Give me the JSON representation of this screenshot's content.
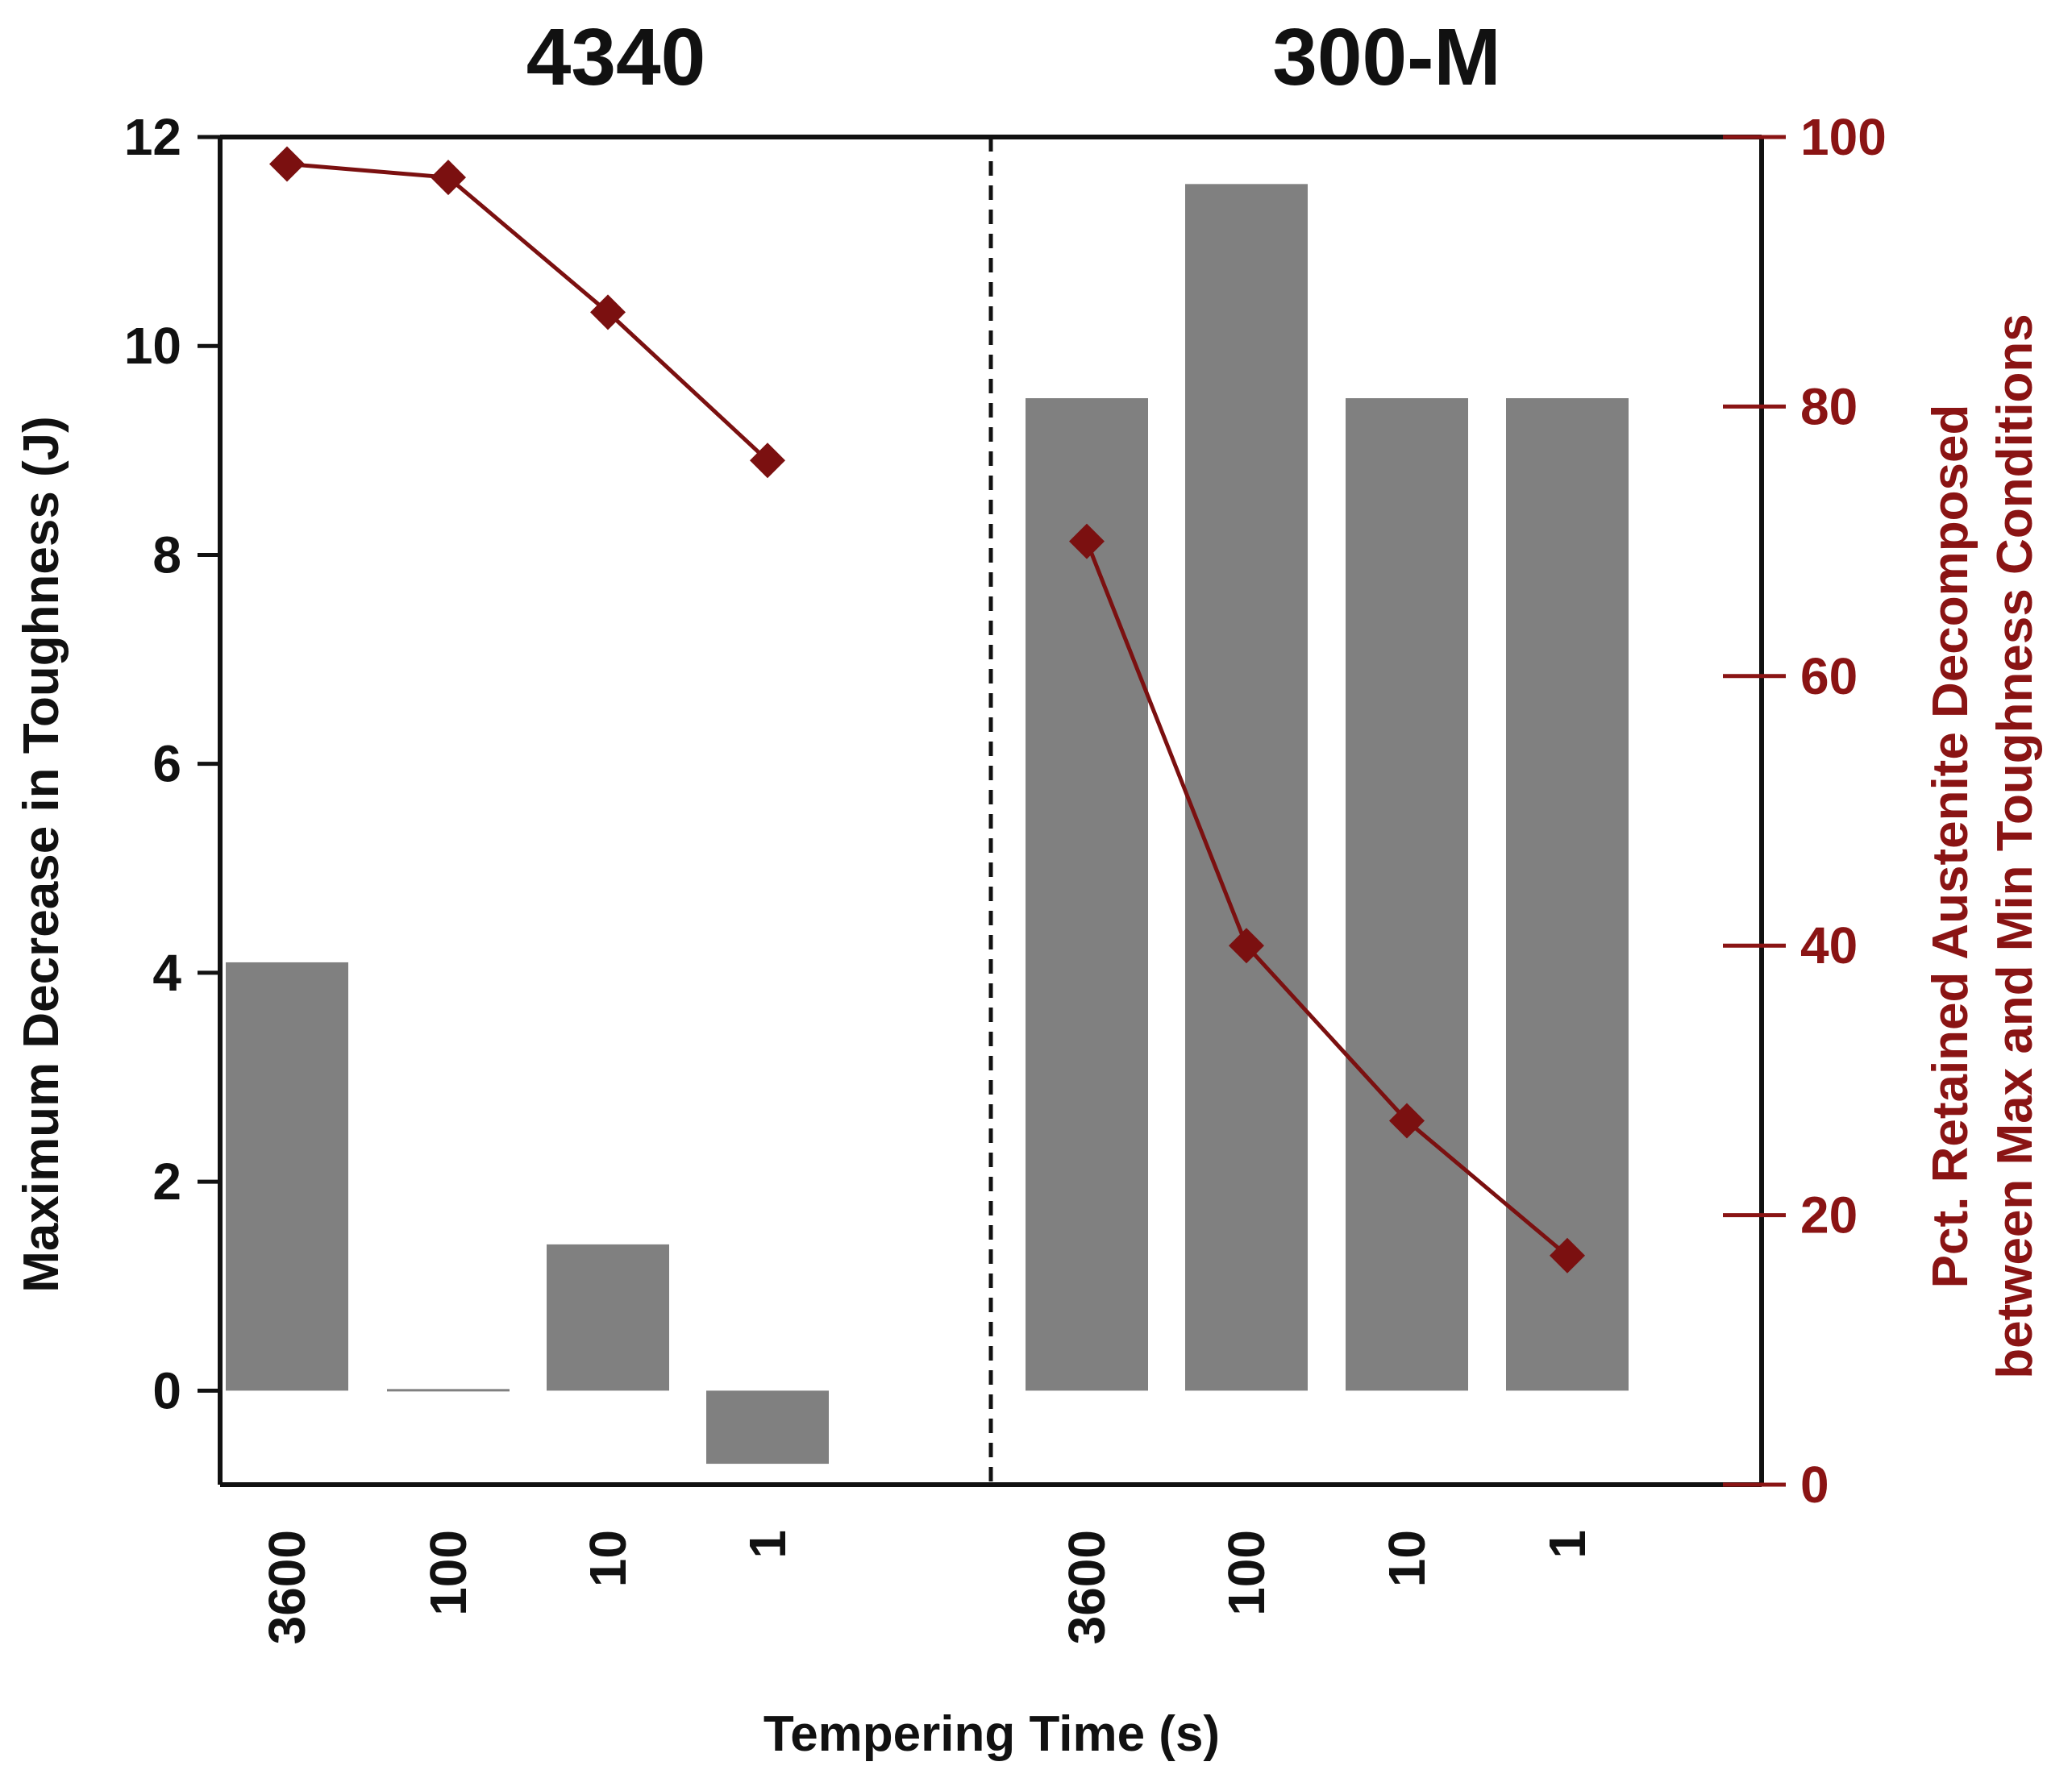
{
  "chart_data": {
    "type": "bar",
    "panels": [
      {
        "title": "4340",
        "categories": [
          "3600",
          "100",
          "10",
          "1"
        ],
        "bars": {
          "name": "Maximum Decrease in Toughness (J)",
          "values": [
            4.1,
            0.02,
            1.4,
            -0.7
          ]
        },
        "line": {
          "name": "Pct. Retained Austenite Decomposed",
          "values": [
            98,
            97,
            87,
            76
          ]
        }
      },
      {
        "title": "300-M",
        "categories": [
          "3600",
          "100",
          "10",
          "1"
        ],
        "bars": {
          "name": "Maximum Decrease in Toughness (J)",
          "values": [
            9.5,
            11.55,
            9.5,
            9.5
          ]
        },
        "line": {
          "name": "Pct. Retained Austenite Decomposed",
          "values": [
            70,
            40,
            27,
            17
          ]
        }
      }
    ],
    "xlabel": "Tempering Time (s)",
    "ylabel_left": "Maximum Decrease in Toughness (J)",
    "ylabel_right_line1": "Pct. Retained Austenite Decomposed",
    "ylabel_right_line2": "between Max and Min Toughness Conditions",
    "ylim_left": [
      -0.9,
      12
    ],
    "yticks_left": [
      "0",
      "2",
      "4",
      "6",
      "8",
      "10",
      "12"
    ],
    "ylim_right": [
      0,
      100
    ],
    "yticks_right": [
      "0",
      "20",
      "40",
      "60",
      "80",
      "100"
    ],
    "colors": {
      "bar": "#808080",
      "line": "#7b1010",
      "axis": "#111111",
      "right_axis": "#8a1414"
    }
  }
}
